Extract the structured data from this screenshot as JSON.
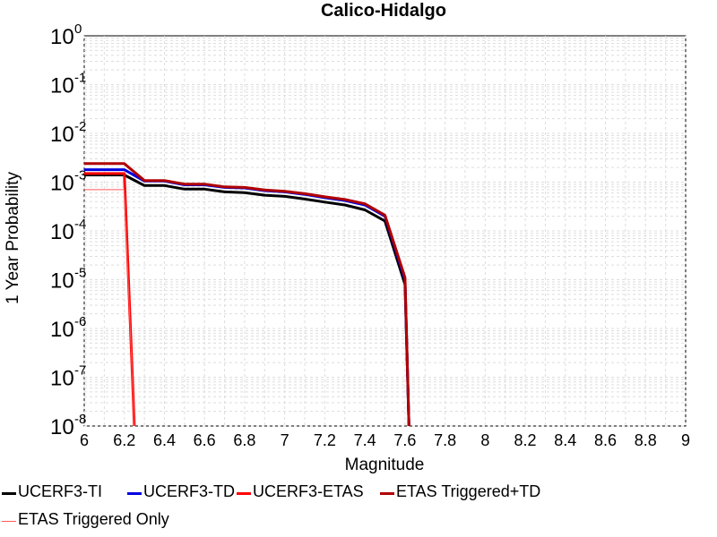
{
  "chart_data": {
    "type": "line",
    "title": "Calico-Hidalgo",
    "xlabel": "Magnitude",
    "ylabel": "1 Year Probability",
    "y_scale": "log",
    "xlim": [
      6,
      9
    ],
    "ylim": [
      1e-08,
      1
    ],
    "grid": true,
    "legend_position": "bottom",
    "x_ticks": [
      "6",
      "6.2",
      "6.4",
      "6.6",
      "6.8",
      "7",
      "7.2",
      "7.4",
      "7.6",
      "7.8",
      "8",
      "8.2",
      "8.4",
      "8.6",
      "8.8",
      "9"
    ],
    "y_ticks": [
      {
        "base": "10",
        "exp": "0"
      },
      {
        "base": "10",
        "exp": "-1"
      },
      {
        "base": "10",
        "exp": "-2"
      },
      {
        "base": "10",
        "exp": "-3"
      },
      {
        "base": "10",
        "exp": "-4"
      },
      {
        "base": "10",
        "exp": "-5"
      },
      {
        "base": "10",
        "exp": "-6"
      },
      {
        "base": "10",
        "exp": "-7"
      },
      {
        "base": "10",
        "exp": "-8"
      }
    ],
    "series": [
      {
        "name": "UCERF3-TI",
        "color": "#000000",
        "width": 3,
        "x": [
          6.0,
          6.2,
          6.3,
          6.4,
          6.5,
          6.6,
          6.7,
          6.8,
          6.9,
          7.0,
          7.1,
          7.2,
          7.3,
          7.4,
          7.5,
          7.6,
          7.62
        ],
        "y": [
          0.0014,
          0.0014,
          0.00085,
          0.00085,
          0.00072,
          0.00072,
          0.00063,
          0.00061,
          0.00054,
          0.00051,
          0.00045,
          0.00039,
          0.00034,
          0.00027,
          0.00016,
          8e-06,
          1e-08
        ]
      },
      {
        "name": "UCERF3-TD",
        "color": "#0000e0",
        "width": 3,
        "x": [
          6.0,
          6.2,
          6.3,
          6.4,
          6.5,
          6.6,
          6.7,
          6.8,
          6.9,
          7.0,
          7.1,
          7.2,
          7.3,
          7.4,
          7.5,
          7.6,
          7.62
        ],
        "y": [
          0.0018,
          0.0018,
          0.00105,
          0.00105,
          0.00088,
          0.00088,
          0.00078,
          0.00076,
          0.00067,
          0.00063,
          0.00056,
          0.00048,
          0.00042,
          0.00034,
          0.0002,
          1e-05,
          1e-08
        ]
      },
      {
        "name": "UCERF3-ETAS",
        "color": "#ff0000",
        "width": 3,
        "x": [
          6.0,
          6.2,
          6.25
        ],
        "y": [
          0.0015,
          0.0015,
          1e-08
        ]
      },
      {
        "name": "ETAS Triggered+TD",
        "color": "#b00000",
        "width": 3,
        "x": [
          6.0,
          6.2,
          6.3,
          6.4,
          6.5,
          6.6,
          6.7,
          6.8,
          6.9,
          7.0,
          7.1,
          7.2,
          7.3,
          7.4,
          7.5,
          7.6,
          7.62
        ],
        "y": [
          0.0024,
          0.0024,
          0.00108,
          0.00108,
          0.00091,
          0.00091,
          0.0008,
          0.00078,
          0.00069,
          0.00065,
          0.00058,
          0.0005,
          0.00044,
          0.00036,
          0.00021,
          1.1e-05,
          1e-08
        ]
      },
      {
        "name": "ETAS Triggered Only",
        "color": "#ff5a5a",
        "width": 1,
        "x": [
          6.0,
          6.2,
          6.25
        ],
        "y": [
          0.0007,
          0.0007,
          1e-08
        ]
      }
    ]
  }
}
